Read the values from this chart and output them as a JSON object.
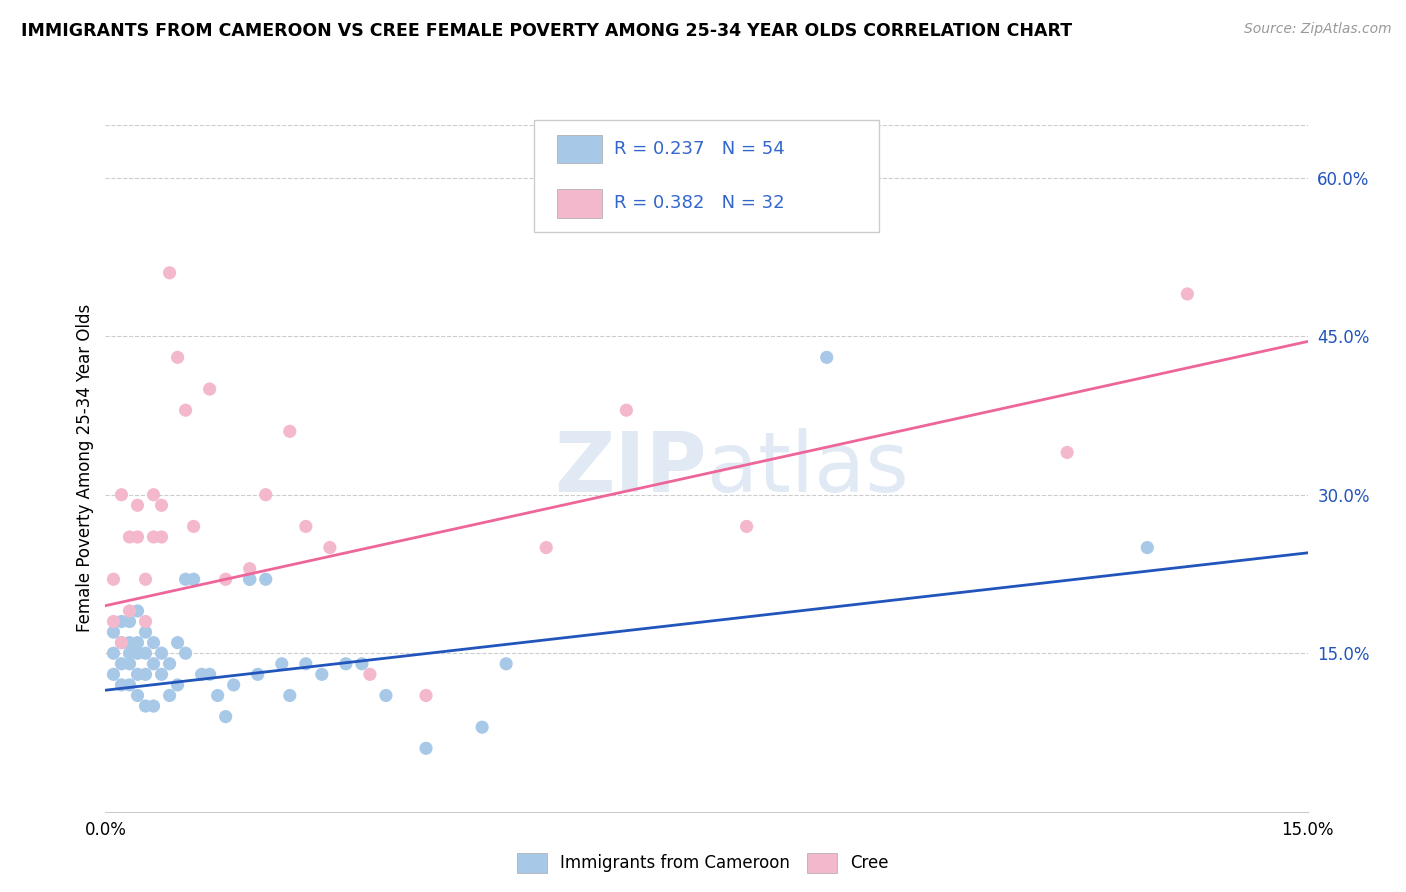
{
  "title": "IMMIGRANTS FROM CAMEROON VS CREE FEMALE POVERTY AMONG 25-34 YEAR OLDS CORRELATION CHART",
  "source": "Source: ZipAtlas.com",
  "ylabel": "Female Poverty Among 25-34 Year Olds",
  "xlim": [
    0.0,
    0.15
  ],
  "ylim": [
    0.0,
    0.65
  ],
  "xtick_positions": [
    0.0,
    0.03,
    0.06,
    0.09,
    0.12,
    0.15
  ],
  "xtick_labels": [
    "0.0%",
    "",
    "",
    "",
    "",
    "15.0%"
  ],
  "yticks_right": [
    0.15,
    0.3,
    0.45,
    0.6
  ],
  "ytick_labels_right": [
    "15.0%",
    "30.0%",
    "45.0%",
    "60.0%"
  ],
  "legend_r1": "R = 0.237",
  "legend_n1": "N = 54",
  "legend_r2": "R = 0.382",
  "legend_n2": "N = 32",
  "blue_scatter_color": "#A8C8E8",
  "pink_scatter_color": "#F4B8CC",
  "blue_line_color": "#2255BB",
  "pink_line_color": "#EE6699",
  "legend_text_color": "#3366CC",
  "watermark_color": "#C8D8EC",
  "blue_label": "Immigrants from Cameroon",
  "pink_label": "Cree",
  "blue_dots_x": [
    0.001,
    0.001,
    0.001,
    0.002,
    0.002,
    0.002,
    0.002,
    0.003,
    0.003,
    0.003,
    0.003,
    0.003,
    0.004,
    0.004,
    0.004,
    0.004,
    0.004,
    0.005,
    0.005,
    0.005,
    0.005,
    0.006,
    0.006,
    0.006,
    0.007,
    0.007,
    0.008,
    0.008,
    0.009,
    0.009,
    0.01,
    0.01,
    0.011,
    0.012,
    0.013,
    0.014,
    0.015,
    0.016,
    0.018,
    0.018,
    0.019,
    0.02,
    0.022,
    0.023,
    0.025,
    0.027,
    0.03,
    0.032,
    0.035,
    0.04,
    0.047,
    0.05,
    0.09,
    0.13
  ],
  "blue_dots_y": [
    0.13,
    0.15,
    0.17,
    0.12,
    0.14,
    0.16,
    0.18,
    0.12,
    0.14,
    0.15,
    0.16,
    0.18,
    0.11,
    0.13,
    0.15,
    0.16,
    0.19,
    0.1,
    0.13,
    0.15,
    0.17,
    0.1,
    0.14,
    0.16,
    0.13,
    0.15,
    0.11,
    0.14,
    0.12,
    0.16,
    0.15,
    0.22,
    0.22,
    0.13,
    0.13,
    0.11,
    0.09,
    0.12,
    0.22,
    0.22,
    0.13,
    0.22,
    0.14,
    0.11,
    0.14,
    0.13,
    0.14,
    0.14,
    0.11,
    0.06,
    0.08,
    0.14,
    0.43,
    0.25
  ],
  "pink_dots_x": [
    0.001,
    0.001,
    0.002,
    0.002,
    0.003,
    0.003,
    0.004,
    0.004,
    0.005,
    0.005,
    0.006,
    0.006,
    0.007,
    0.007,
    0.008,
    0.009,
    0.01,
    0.011,
    0.013,
    0.015,
    0.018,
    0.02,
    0.023,
    0.025,
    0.028,
    0.033,
    0.04,
    0.055,
    0.065,
    0.08,
    0.12,
    0.135
  ],
  "pink_dots_y": [
    0.18,
    0.22,
    0.16,
    0.3,
    0.19,
    0.26,
    0.26,
    0.29,
    0.22,
    0.18,
    0.26,
    0.3,
    0.26,
    0.29,
    0.51,
    0.43,
    0.38,
    0.27,
    0.4,
    0.22,
    0.23,
    0.3,
    0.36,
    0.27,
    0.25,
    0.13,
    0.11,
    0.25,
    0.38,
    0.27,
    0.34,
    0.49
  ],
  "blue_line_x": [
    0.0,
    0.15
  ],
  "blue_line_y": [
    0.115,
    0.245
  ],
  "pink_line_x": [
    0.0,
    0.15
  ],
  "pink_line_y": [
    0.195,
    0.445
  ]
}
